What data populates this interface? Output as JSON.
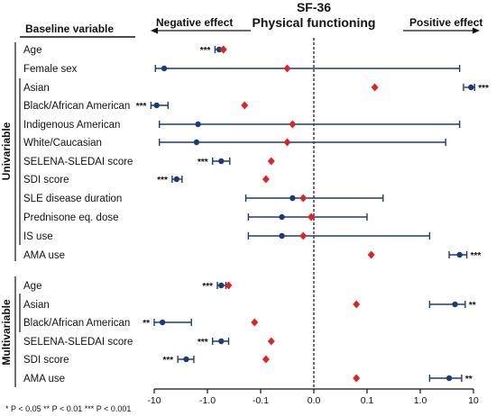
{
  "header": {
    "column_label": "Baseline variable",
    "title_line1": "SF-36",
    "title_line2": "Physical functioning",
    "negative_label": "Negative effect",
    "positive_label": "Positive effect"
  },
  "groups": {
    "univariable": "Univariable",
    "multivariable": "Multivariable"
  },
  "footnote": "* P < 0.05  ** P < 0.01  *** P < 0.001",
  "colors": {
    "estimate": "#1f3b73",
    "reference": "#d62828",
    "axis": "#111111"
  },
  "chart_data": {
    "type": "forest",
    "scale": "symlog",
    "xticks": [
      "-10",
      "-1.0",
      "-0.1",
      "0.0",
      "0.1",
      "1.0",
      "10"
    ],
    "xtick_values": [
      -10,
      -1,
      -0.1,
      0,
      0.1,
      1,
      10
    ],
    "xlim": [
      -10,
      10
    ],
    "zero_line": "dashed",
    "rows": [
      {
        "group": "univariable",
        "label": "Age",
        "est": -0.6,
        "lo": -0.72,
        "hi": -0.5,
        "ref": -0.5,
        "sig": "***"
      },
      {
        "group": "univariable",
        "label": "Female sex",
        "est": -6.5,
        "lo": -9.5,
        "hi": 5.5,
        "ref": -0.05,
        "sig": ""
      },
      {
        "group": "univariable",
        "label": "Asian",
        "est": 9.0,
        "lo": 6.5,
        "hi": 10.5,
        "ref": 0.14,
        "sig": "***"
      },
      {
        "group": "univariable",
        "label": "Black/African American",
        "est": -9.0,
        "lo": -11.5,
        "hi": -5.5,
        "ref": -0.2,
        "sig": "***"
      },
      {
        "group": "univariable",
        "label": "Indigenous American",
        "est": -1.5,
        "lo": -8.0,
        "hi": 5.5,
        "ref": -0.04,
        "sig": ""
      },
      {
        "group": "univariable",
        "label": "White/Caucasian",
        "est": -1.6,
        "lo": -8.0,
        "hi": 3.0,
        "ref": -0.05,
        "sig": ""
      },
      {
        "group": "univariable",
        "label": "SELENA-SLEDAI score",
        "est": -0.55,
        "lo": -0.8,
        "hi": -0.38,
        "ref": -0.08,
        "sig": "***"
      },
      {
        "group": "univariable",
        "label": "SDI score",
        "est": -3.8,
        "lo": -4.6,
        "hi": -3.0,
        "ref": -0.09,
        "sig": "***"
      },
      {
        "group": "univariable",
        "label": "SLE disease duration",
        "est": -0.04,
        "lo": -0.19,
        "hi": 0.2,
        "ref": -0.02,
        "sig": ""
      },
      {
        "group": "univariable",
        "label": "Prednisone eq. dose",
        "est": -0.06,
        "lo": -0.17,
        "hi": 0.1,
        "ref": -0.005,
        "sig": ""
      },
      {
        "group": "univariable",
        "label": "IS use",
        "est": -0.06,
        "lo": -0.17,
        "hi": 1.5,
        "ref": -0.02,
        "sig": ""
      },
      {
        "group": "univariable",
        "label": "AMA use",
        "est": 5.5,
        "lo": 3.5,
        "hi": 7.5,
        "ref": 0.12,
        "sig": "***"
      },
      {
        "group": "multivariable",
        "label": "Age",
        "est": -0.55,
        "lo": -0.65,
        "hi": -0.45,
        "ref": -0.4,
        "sig": "***"
      },
      {
        "group": "multivariable",
        "label": "Asian",
        "est": 4.5,
        "lo": 1.5,
        "hi": 7.0,
        "ref": 0.08,
        "sig": "**"
      },
      {
        "group": "multivariable",
        "label": "Black/African American",
        "est": -7.0,
        "lo": -10.0,
        "hi": -2.0,
        "ref": -0.13,
        "sig": "**"
      },
      {
        "group": "multivariable",
        "label": "SELENA-SLEDAI score",
        "est": -0.55,
        "lo": -0.8,
        "hi": -0.4,
        "ref": -0.08,
        "sig": "***"
      },
      {
        "group": "multivariable",
        "label": "SDI score",
        "est": -2.5,
        "lo": -3.6,
        "hi": -1.8,
        "ref": -0.09,
        "sig": "***"
      },
      {
        "group": "multivariable",
        "label": "AMA use",
        "est": 3.5,
        "lo": 1.5,
        "hi": 6.0,
        "ref": 0.08,
        "sig": "**"
      }
    ]
  }
}
